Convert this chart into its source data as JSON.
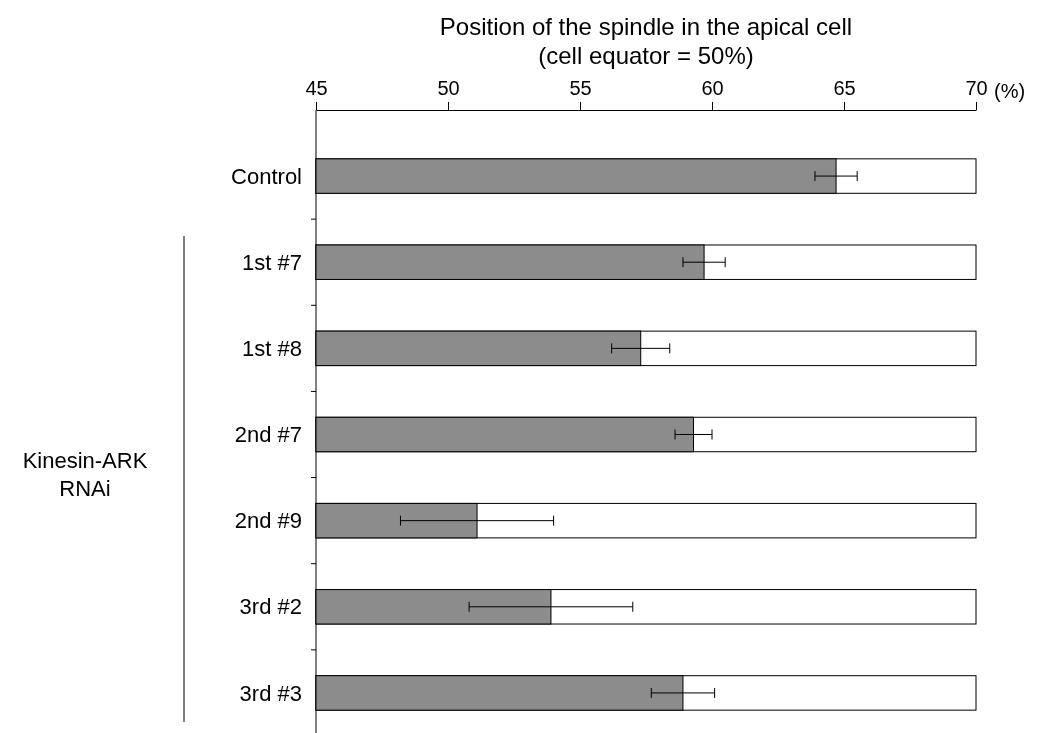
{
  "chart_data": {
    "type": "bar",
    "orientation": "horizontal",
    "title": "Position of the spindle in the apical cell\n(cell equator = 50%)",
    "xlabel": "(%)",
    "categories": [
      "Control",
      "1st #7",
      "1st #8",
      "2nd #7",
      "2nd #9",
      "3rd #2",
      "3rd #3"
    ],
    "values": [
      64.7,
      59.7,
      57.3,
      59.3,
      51.1,
      53.9,
      58.9
    ],
    "errors": [
      0.8,
      0.8,
      1.1,
      0.7,
      2.9,
      3.1,
      1.2
    ],
    "color": "#8c8c8c",
    "xlim": [
      45,
      70
    ],
    "xticks": [
      45,
      50,
      55,
      60,
      65,
      70
    ],
    "annotations": [
      "Kinesin-ARK\nRNAi"
    ]
  }
}
